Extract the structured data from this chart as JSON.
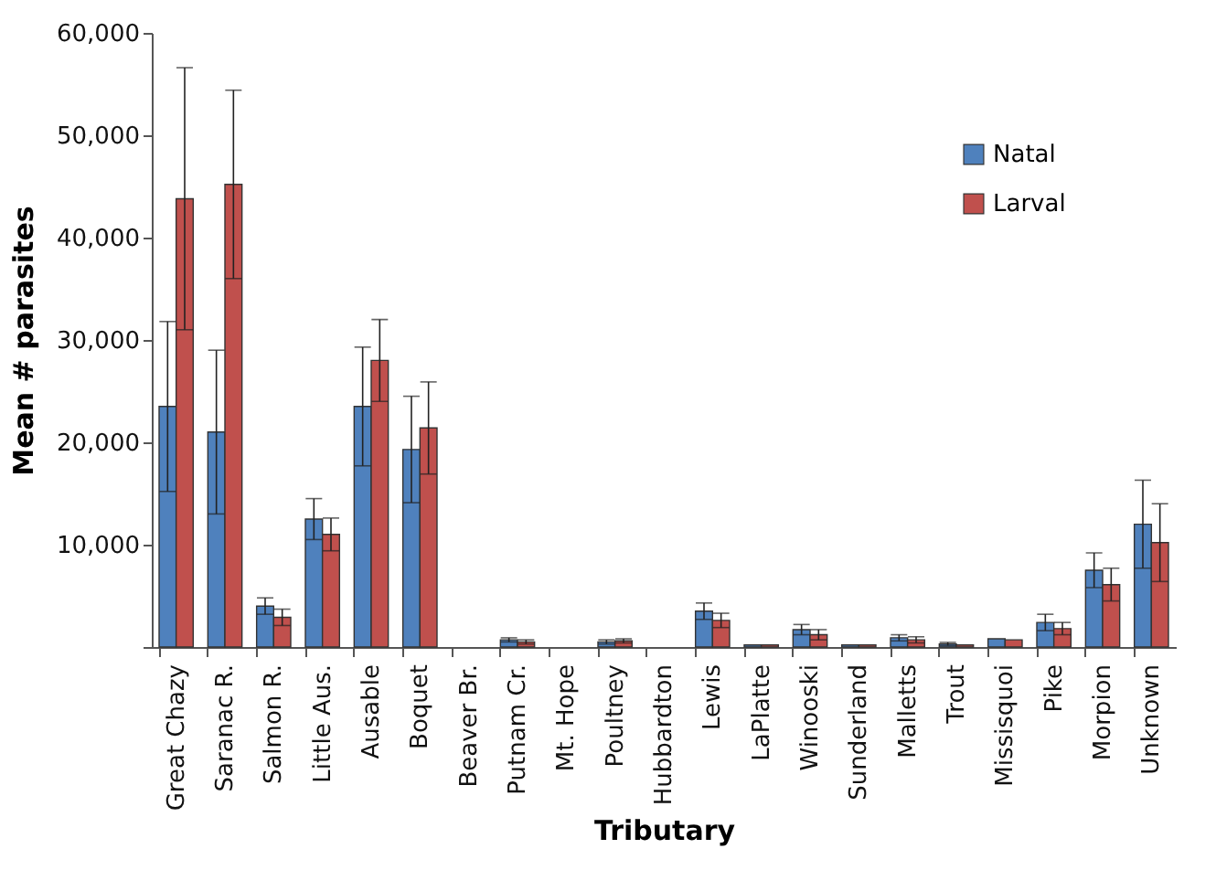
{
  "chart_data": {
    "type": "bar",
    "xlabel": "Tributary",
    "ylabel": "Mean # parasites",
    "categories": [
      "Great Chazy",
      "Saranac R.",
      "Salmon R.",
      "Little Aus.",
      "Ausable",
      "Boquet",
      "Beaver Br.",
      "Putnam Cr.",
      "Mt. Hope",
      "Poultney",
      "Hubbardton",
      "Lewis",
      "LaPlatte",
      "Winooski",
      "Sunderland",
      "Malletts",
      "Trout",
      "Missisquoi",
      "Pike",
      "Morpion",
      "Unknown"
    ],
    "series": [
      {
        "name": "Natal",
        "color": "#4f81bd",
        "values": [
          23500,
          21000,
          4000,
          12500,
          23500,
          19300,
          null,
          700,
          null,
          500,
          null,
          3500,
          200,
          1700,
          200,
          900,
          300,
          800,
          2400,
          7500,
          12000
        ],
        "errors": [
          8300,
          8000,
          800,
          2000,
          5800,
          5200,
          null,
          200,
          null,
          200,
          null,
          800,
          null,
          500,
          null,
          300,
          150,
          null,
          800,
          1700,
          4300
        ]
      },
      {
        "name": "Larval",
        "color": "#c0504d",
        "values": [
          43800,
          45200,
          2900,
          11000,
          28000,
          21400,
          null,
          500,
          null,
          600,
          null,
          2600,
          200,
          1200,
          200,
          700,
          200,
          700,
          1800,
          6100,
          10200
        ],
        "errors": [
          12800,
          9200,
          800,
          1600,
          4000,
          4500,
          null,
          200,
          null,
          200,
          null,
          700,
          null,
          500,
          null,
          300,
          null,
          null,
          600,
          1600,
          3800
        ]
      }
    ],
    "ylim": [
      0,
      60000
    ],
    "yticks": [
      {
        "value": 0,
        "label": null
      },
      {
        "value": 10000,
        "label": "10,000"
      },
      {
        "value": 20000,
        "label": "20,000"
      },
      {
        "value": 30000,
        "label": "30,000"
      },
      {
        "value": 40000,
        "label": "40,000"
      },
      {
        "value": 50000,
        "label": "50,000"
      },
      {
        "value": 60000,
        "label": "60,000"
      }
    ],
    "grid": false,
    "legend": "top right"
  }
}
